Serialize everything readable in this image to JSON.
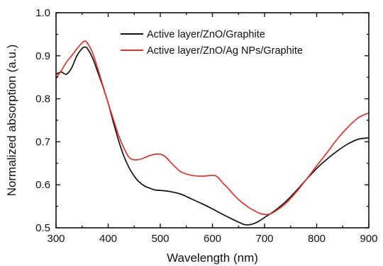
{
  "chart_data": {
    "type": "line",
    "title": "",
    "xlabel": "Wavelength (nm)",
    "ylabel": "Normalized absorption (a.u.)",
    "xlim": [
      300,
      900
    ],
    "ylim": [
      0.5,
      1.0
    ],
    "xticks": [
      300,
      400,
      500,
      600,
      700,
      800,
      900
    ],
    "yticks": [
      0.5,
      0.6,
      0.7,
      0.8,
      0.9,
      1.0
    ],
    "xtick_labels": [
      "300",
      "400",
      "500",
      "600",
      "700",
      "800",
      "900"
    ],
    "ytick_labels": [
      "0.5",
      "0.6",
      "0.7",
      "0.8",
      "0.9",
      "1.0"
    ],
    "grid": false,
    "legend_position": "top-right",
    "series": [
      {
        "name": "Active layer/ZnO/Graphite",
        "color": "#111111",
        "x": [
          300,
          310,
          320,
          330,
          340,
          350,
          355,
          360,
          370,
          380,
          390,
          400,
          410,
          420,
          430,
          440,
          450,
          460,
          470,
          480,
          490,
          500,
          520,
          540,
          560,
          580,
          600,
          620,
          640,
          660,
          670,
          680,
          690,
          700,
          720,
          740,
          760,
          780,
          800,
          820,
          840,
          860,
          880,
          900
        ],
        "y": [
          0.857,
          0.862,
          0.857,
          0.872,
          0.9,
          0.917,
          0.92,
          0.917,
          0.895,
          0.862,
          0.828,
          0.79,
          0.745,
          0.703,
          0.667,
          0.64,
          0.62,
          0.606,
          0.597,
          0.592,
          0.588,
          0.587,
          0.584,
          0.578,
          0.567,
          0.556,
          0.544,
          0.531,
          0.519,
          0.508,
          0.507,
          0.51,
          0.516,
          0.524,
          0.54,
          0.56,
          0.585,
          0.612,
          0.638,
          0.66,
          0.679,
          0.695,
          0.706,
          0.709
        ]
      },
      {
        "name": "Active layer/ZnO/Ag NPs/Graphite",
        "color": "#e8302a",
        "x": [
          300,
          310,
          320,
          330,
          340,
          350,
          355,
          360,
          370,
          380,
          390,
          400,
          410,
          420,
          430,
          440,
          450,
          460,
          470,
          480,
          490,
          500,
          510,
          520,
          530,
          540,
          560,
          580,
          600,
          610,
          620,
          630,
          640,
          650,
          660,
          670,
          680,
          690,
          700,
          710,
          720,
          740,
          760,
          780,
          800,
          820,
          840,
          860,
          880,
          900
        ],
        "y": [
          0.848,
          0.865,
          0.885,
          0.9,
          0.916,
          0.93,
          0.934,
          0.93,
          0.907,
          0.87,
          0.83,
          0.79,
          0.752,
          0.715,
          0.686,
          0.664,
          0.658,
          0.659,
          0.663,
          0.668,
          0.671,
          0.671,
          0.665,
          0.652,
          0.64,
          0.63,
          0.622,
          0.62,
          0.622,
          0.618,
          0.604,
          0.592,
          0.578,
          0.566,
          0.556,
          0.547,
          0.54,
          0.534,
          0.531,
          0.532,
          0.538,
          0.556,
          0.582,
          0.612,
          0.644,
          0.675,
          0.707,
          0.734,
          0.756,
          0.767
        ]
      }
    ]
  }
}
